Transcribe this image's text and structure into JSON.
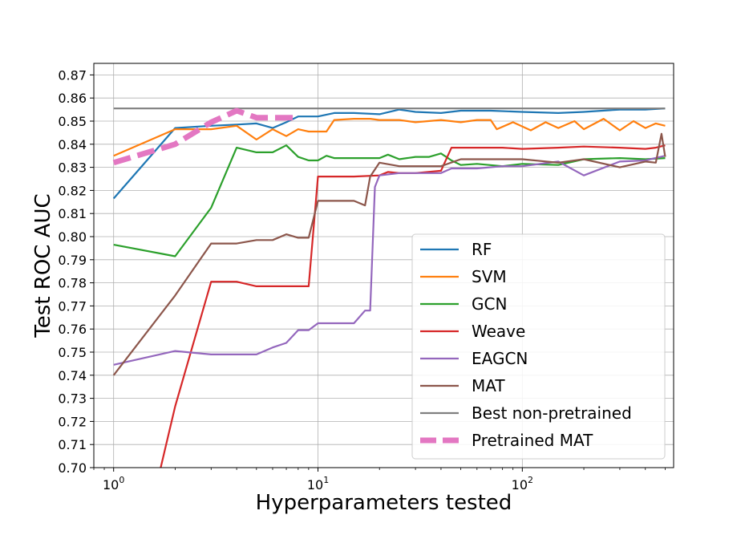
{
  "chart_data": {
    "type": "line",
    "title": "",
    "xlabel": "Hyperparameters tested",
    "ylabel": "Test ROC AUC",
    "xscale": "log",
    "xlim": [
      0.8,
      550
    ],
    "ylim": [
      0.7,
      0.875
    ],
    "grid": true,
    "legend_position": "lower-right",
    "x_ticks": [
      {
        "value": 1,
        "base": "10",
        "exp": "0"
      },
      {
        "value": 10,
        "base": "10",
        "exp": "1"
      },
      {
        "value": 100,
        "base": "10",
        "exp": "2"
      }
    ],
    "y_ticks": [
      "0.70",
      "0.71",
      "0.72",
      "0.73",
      "0.74",
      "0.75",
      "0.76",
      "0.77",
      "0.78",
      "0.79",
      "0.80",
      "0.81",
      "0.82",
      "0.83",
      "0.84",
      "0.85",
      "0.86",
      "0.87"
    ],
    "series": [
      {
        "name": "RF",
        "color": "#1f77b4",
        "style": "solid",
        "x": [
          1,
          2,
          3,
          4,
          5,
          6,
          7,
          8,
          10,
          12,
          15,
          20,
          25,
          30,
          40,
          50,
          70,
          100,
          150,
          200,
          300,
          400,
          500
        ],
        "y": [
          0.8165,
          0.847,
          0.848,
          0.8485,
          0.849,
          0.847,
          0.8495,
          0.852,
          0.852,
          0.8535,
          0.8535,
          0.853,
          0.855,
          0.854,
          0.8535,
          0.8545,
          0.8545,
          0.854,
          0.8535,
          0.854,
          0.855,
          0.855,
          0.8555
        ]
      },
      {
        "name": "SVM",
        "color": "#ff7f0e",
        "style": "solid",
        "x": [
          1,
          2,
          3,
          4,
          5,
          6,
          7,
          8,
          9,
          10,
          11,
          12,
          15,
          18,
          20,
          25,
          30,
          40,
          50,
          60,
          70,
          75,
          90,
          110,
          130,
          150,
          180,
          200,
          250,
          300,
          350,
          400,
          450,
          500
        ],
        "y": [
          0.835,
          0.8465,
          0.8465,
          0.848,
          0.842,
          0.8465,
          0.8435,
          0.8465,
          0.8455,
          0.8455,
          0.8455,
          0.8505,
          0.851,
          0.851,
          0.8505,
          0.8505,
          0.8495,
          0.8505,
          0.8495,
          0.8505,
          0.8505,
          0.8465,
          0.8495,
          0.846,
          0.8495,
          0.847,
          0.85,
          0.8465,
          0.851,
          0.846,
          0.85,
          0.847,
          0.849,
          0.848
        ]
      },
      {
        "name": "GCN",
        "color": "#2ca02c",
        "style": "solid",
        "x": [
          1,
          2,
          3,
          4,
          5,
          6,
          7,
          8,
          9,
          10,
          11,
          12,
          20,
          22,
          25,
          30,
          35,
          40,
          45,
          50,
          60,
          80,
          100,
          150,
          200,
          300,
          400,
          500
        ],
        "y": [
          0.7965,
          0.7915,
          0.8125,
          0.8385,
          0.8365,
          0.8365,
          0.8395,
          0.8345,
          0.833,
          0.833,
          0.835,
          0.834,
          0.834,
          0.8355,
          0.8335,
          0.8345,
          0.8345,
          0.836,
          0.833,
          0.831,
          0.8315,
          0.8305,
          0.8315,
          0.831,
          0.8335,
          0.834,
          0.8335,
          0.834
        ]
      },
      {
        "name": "Weave",
        "color": "#d62728",
        "style": "solid",
        "x": [
          1.7,
          2,
          3,
          4,
          5,
          6,
          7,
          8,
          9,
          10,
          15,
          20,
          22,
          25,
          30,
          40,
          45,
          50,
          60,
          80,
          100,
          150,
          200,
          300,
          400,
          450,
          500
        ],
        "y": [
          0.7,
          0.7265,
          0.7805,
          0.7805,
          0.7785,
          0.7785,
          0.7785,
          0.7785,
          0.7785,
          0.826,
          0.826,
          0.8265,
          0.828,
          0.8275,
          0.8275,
          0.8285,
          0.8385,
          0.8385,
          0.8385,
          0.8385,
          0.838,
          0.8385,
          0.839,
          0.8385,
          0.838,
          0.8385,
          0.8395
        ]
      },
      {
        "name": "EAGCN",
        "color": "#9467bd",
        "style": "solid",
        "x": [
          1,
          2,
          3,
          4,
          5,
          6,
          7,
          8,
          9,
          10,
          12,
          15,
          17,
          18,
          19,
          20,
          25,
          30,
          40,
          45,
          50,
          60,
          80,
          100,
          150,
          200,
          300,
          400,
          500
        ],
        "y": [
          0.7445,
          0.7505,
          0.749,
          0.749,
          0.749,
          0.752,
          0.754,
          0.7595,
          0.7595,
          0.7625,
          0.7625,
          0.7625,
          0.768,
          0.768,
          0.8215,
          0.8265,
          0.8275,
          0.8275,
          0.8275,
          0.8295,
          0.8295,
          0.8295,
          0.8305,
          0.8305,
          0.8325,
          0.8265,
          0.8325,
          0.833,
          0.835
        ]
      },
      {
        "name": "MAT",
        "color": "#8c564b",
        "style": "solid",
        "x": [
          1,
          2,
          3,
          4,
          5,
          6,
          7,
          8,
          9,
          10,
          15,
          17,
          18,
          20,
          25,
          30,
          40,
          50,
          60,
          80,
          100,
          150,
          200,
          300,
          400,
          450,
          480,
          500
        ],
        "y": [
          0.74,
          0.7745,
          0.797,
          0.797,
          0.7985,
          0.7985,
          0.801,
          0.7995,
          0.7995,
          0.8155,
          0.8155,
          0.8135,
          0.826,
          0.832,
          0.8305,
          0.8305,
          0.8305,
          0.8335,
          0.8335,
          0.8335,
          0.8335,
          0.832,
          0.8335,
          0.83,
          0.8325,
          0.832,
          0.8445,
          0.8345
        ]
      },
      {
        "name": "Best non-pretrained",
        "color": "#7f7f7f",
        "style": "solid",
        "x": [
          1,
          500
        ],
        "y": [
          0.8555,
          0.8555
        ]
      },
      {
        "name": "Pretrained MAT",
        "color": "#e377c2",
        "style": "dashed",
        "x": [
          1,
          2,
          3,
          4,
          5,
          6,
          8
        ],
        "y": [
          0.832,
          0.84,
          0.8495,
          0.8545,
          0.8515,
          0.8515,
          0.8515
        ]
      }
    ]
  }
}
